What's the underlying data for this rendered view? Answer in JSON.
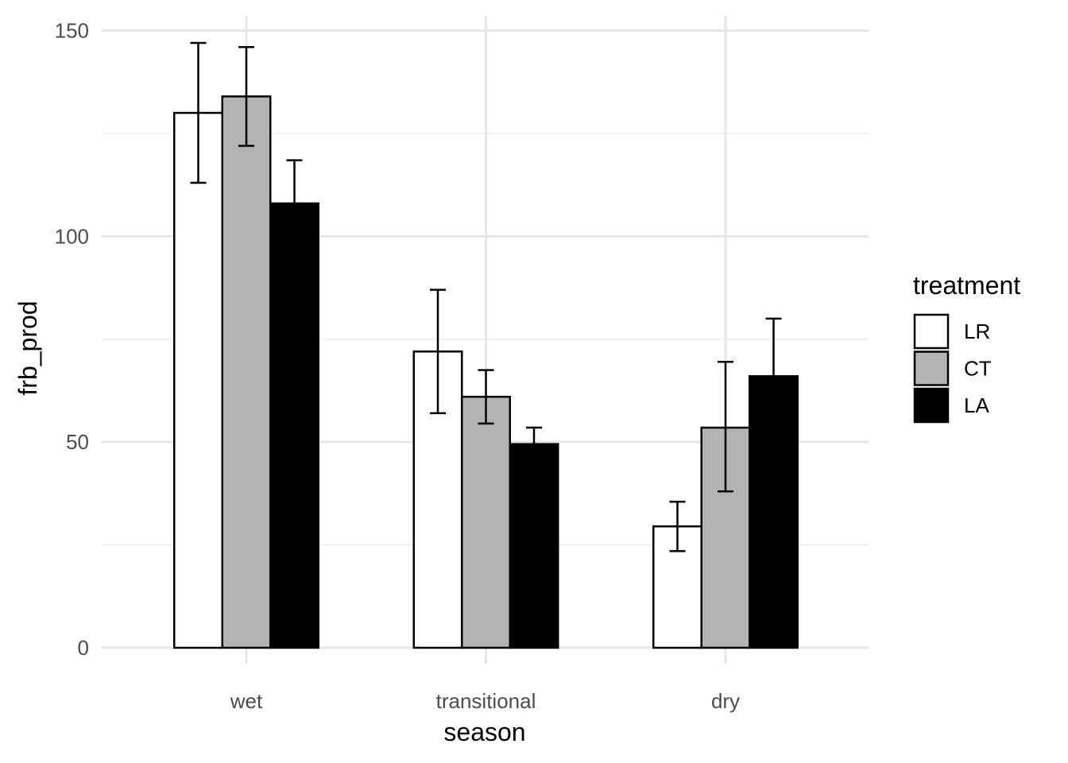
{
  "chart_data": {
    "type": "bar",
    "title": "",
    "xlabel": "season",
    "ylabel": "frb_prod",
    "categories": [
      "wet",
      "transitional",
      "dry"
    ],
    "ylim": [
      0,
      150
    ],
    "yticks": [
      0,
      50,
      100,
      150
    ],
    "grid": true,
    "legend": {
      "title": "treatment",
      "position": "right"
    },
    "series": [
      {
        "name": "LR",
        "color": "#ffffff",
        "values": [
          130,
          72,
          29.5
        ],
        "err_low": [
          113,
          57,
          23.5
        ],
        "err_high": [
          147,
          87,
          35.5
        ]
      },
      {
        "name": "CT",
        "color": "#b3b3b3",
        "values": [
          134,
          61,
          53.5
        ],
        "err_low": [
          122,
          54.5,
          38
        ],
        "err_high": [
          146,
          67.5,
          69.5
        ]
      },
      {
        "name": "LA",
        "color": "#000000",
        "values": [
          108,
          49.5,
          66
        ],
        "err_low": [
          98,
          46,
          62
        ],
        "err_high": [
          118.5,
          53.5,
          80
        ]
      }
    ]
  }
}
